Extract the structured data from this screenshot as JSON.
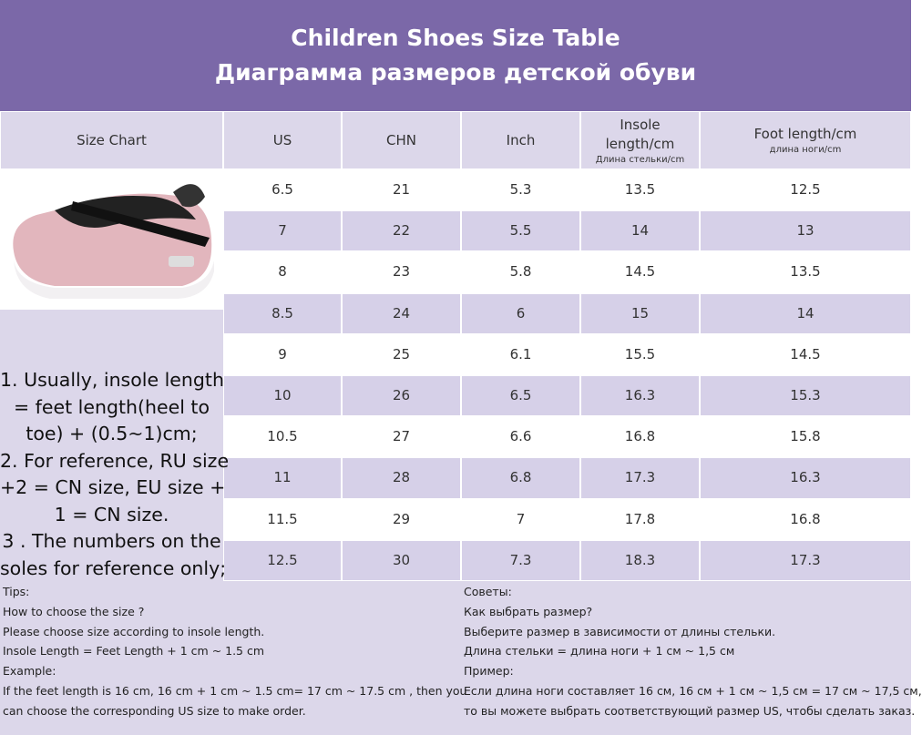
{
  "header": {
    "title": [
      "Children Shoes Size Table",
      "Диаграмма размеров детской обуви"
    ]
  },
  "table": {
    "columns": [
      {
        "lines": [
          "Size Chart"
        ]
      },
      {
        "lines": [
          "US"
        ]
      },
      {
        "lines": [
          "CHN"
        ]
      },
      {
        "lines": [
          "Inch"
        ]
      },
      {
        "lines": [
          "Insole",
          "length/cm"
        ],
        "sub": "Длина стельки/cm"
      },
      {
        "lines": [
          "Foot length/cm"
        ],
        "sub": "длина ноги/cm"
      }
    ],
    "rows": [
      [
        6.5,
        21,
        5.3,
        13.5,
        12.5
      ],
      [
        7,
        22,
        5.5,
        14,
        13
      ],
      [
        8,
        23,
        5.8,
        14.5,
        13.5
      ],
      [
        8.5,
        24,
        6,
        15,
        14
      ],
      [
        9,
        25,
        6.1,
        15.5,
        14.5
      ],
      [
        10,
        26,
        6.5,
        16.3,
        15.3
      ],
      [
        10.5,
        27,
        6.6,
        16.8,
        15.8
      ],
      [
        11,
        28,
        6.8,
        17.3,
        16.3
      ],
      [
        11.5,
        29,
        7,
        17.8,
        16.8
      ],
      [
        12.5,
        30,
        7.3,
        18.3,
        17.3
      ]
    ]
  },
  "notes": [
    "1. Usually, insole length",
    "= feet length(heel to",
    "toe) + (0.5~1)cm;",
    "2. For reference, RU size",
    "+2 = CN size, EU size +",
    "1 = CN size.",
    "3 . The numbers on the",
    "soles for reference only;"
  ],
  "tips": {
    "left": [
      "Tips:",
      "How to choose the size ?",
      "Please choose size according to insole length.",
      "Insole Length = Feet Length + 1 cm ~ 1.5 cm",
      "Example:",
      "If the feet length is 16 cm, 16 cm + 1 cm ~ 1.5 cm= 17 cm ~ 17.5 cm , then you",
      "can choose the corresponding US size to make order."
    ],
    "right": [
      "Советы:",
      "Как выбрать размер?",
      "Выберите размер в зависимости от длины стельки.",
      "Длина стельки = длина ноги + 1 см ~ 1,5 см",
      "Пример:",
      "Если длина ноги составляет 16 см, 16 см + 1 см ~ 1,5 см = 17 см ~ 17,5 см,",
      "то вы можете выбрать соответствующий размер US, чтобы сделать заказ."
    ]
  }
}
